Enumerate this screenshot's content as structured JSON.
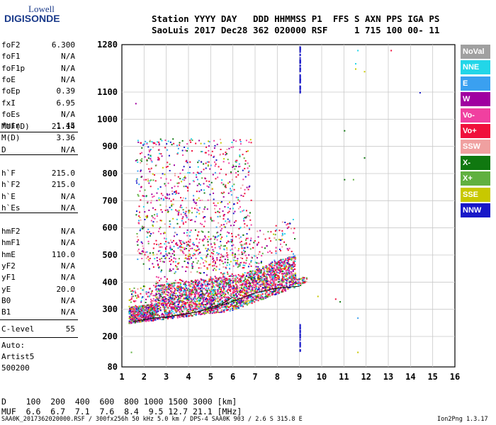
{
  "logo": {
    "top": "Lowell",
    "bottom": "DIGISONDE"
  },
  "header": {
    "line1": "Station YYYY DAY   DDD HHMMSS P1  FFS S AXN PPS IGA PS",
    "line2": "SaoLuis 2017 Dec28 362 020000 RSF     1 715 100 00- 11"
  },
  "params_group1": [
    {
      "label": "foF2",
      "value": "6.300"
    },
    {
      "label": "foF1",
      "value": "N/A"
    },
    {
      "label": "foF1p",
      "value": "N/A"
    },
    {
      "label": "foE",
      "value": "N/A"
    },
    {
      "label": "foEp",
      "value": "0.39"
    },
    {
      "label": "fxI",
      "value": "6.95"
    },
    {
      "label": "foEs",
      "value": "N/A"
    },
    {
      "label": "fmin",
      "value": "1.45"
    }
  ],
  "params_group2": [
    {
      "label": "MUF(D)",
      "value": "21.14"
    },
    {
      "label": "M(D)",
      "value": "3.36"
    },
    {
      "label": "D",
      "value": "N/A"
    }
  ],
  "params_group3": [
    {
      "label": "h`F",
      "value": "215.0"
    },
    {
      "label": "h`F2",
      "value": "215.0"
    },
    {
      "label": "h`E",
      "value": "N/A"
    },
    {
      "label": "h`Es",
      "value": "N/A"
    }
  ],
  "params_group4": [
    {
      "label": "hmF2",
      "value": "N/A"
    },
    {
      "label": "hmF1",
      "value": "N/A"
    },
    {
      "label": "hmE",
      "value": "110.0"
    },
    {
      "label": "yF2",
      "value": "N/A"
    },
    {
      "label": "yF1",
      "value": "N/A"
    },
    {
      "label": "yE",
      "value": "20.0"
    },
    {
      "label": "B0",
      "value": "N/A"
    },
    {
      "label": "B1",
      "value": "N/A"
    }
  ],
  "clevel": {
    "label": "C-level",
    "value": "55"
  },
  "auto": [
    "Auto:",
    "Artist5",
    "500200"
  ],
  "legend": [
    {
      "label": "NoVal",
      "color": "#a0a0a0"
    },
    {
      "label": "NNE",
      "color": "#22d6e8"
    },
    {
      "label": "E",
      "color": "#3aa0f0"
    },
    {
      "label": "W",
      "color": "#a000a0"
    },
    {
      "label": "Vo-",
      "color": "#f040a0"
    },
    {
      "label": "Vo+",
      "color": "#f0103c"
    },
    {
      "label": "SSW",
      "color": "#f0a0a0"
    },
    {
      "label": "X-",
      "color": "#107810"
    },
    {
      "label": "X+",
      "color": "#60b040"
    },
    {
      "label": "SSE",
      "color": "#c8c800"
    },
    {
      "label": "NNW",
      "color": "#1818c8"
    }
  ],
  "mufd_table": {
    "row1": "D    100  200  400  600  800 1000 1500 3000 [km]",
    "row2": "MUF  6.6  6.7  7.1  7.6  8.4  9.5 12.7 21.1 [MHz]"
  },
  "footer": {
    "left": "SAA0K_2017362020000.RSF / 300fx256h 50 kHz 5.0 km / DPS-4 SAA0K 903 / 2.6 S 315.8 E",
    "right": "Ion2Png 1.3.17"
  },
  "chart_data": {
    "type": "scatter",
    "title": "",
    "xlabel": "",
    "ylabel": "",
    "xlim": [
      1,
      16
    ],
    "ylim": [
      80,
      1280
    ],
    "x_ticks": [
      1,
      2,
      3,
      4,
      5,
      6,
      7,
      8,
      9,
      10,
      11,
      12,
      13,
      14,
      15,
      16
    ],
    "y_ticks": [
      80,
      200,
      300,
      400,
      500,
      600,
      700,
      800,
      900,
      1000,
      1100,
      1280
    ],
    "grid": true,
    "x_units": "MHz",
    "y_units": "km",
    "trace_series": [
      {
        "label": "Vo-",
        "x": [
          1.5,
          2.0,
          2.5,
          3.0,
          3.5,
          4.0,
          4.5,
          5.0,
          5.5,
          6.0
        ],
        "y": [
          255,
          262,
          268,
          272,
          278,
          285,
          292,
          305,
          320,
          345
        ]
      },
      {
        "label": "Vo+",
        "x": [
          5.0,
          5.5,
          6.0,
          6.5,
          7.0,
          7.5,
          8.0,
          8.5,
          9.0
        ],
        "y": [
          300,
          315,
          330,
          345,
          360,
          370,
          378,
          382,
          385
        ]
      }
    ]
  }
}
